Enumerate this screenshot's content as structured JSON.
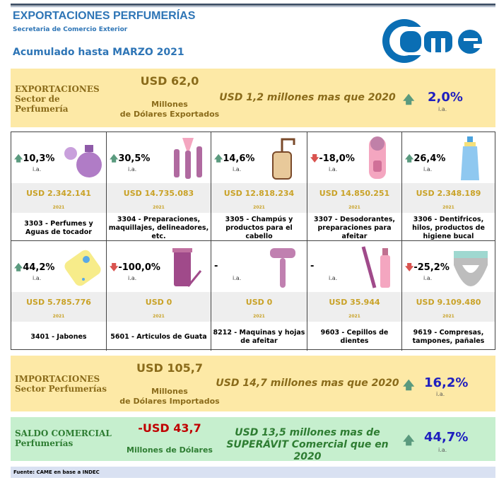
{
  "header": {
    "title": "EXPORTACIONES PERFUMERÍAS",
    "subtitle": "Secretaria de Comercio Exterior",
    "period": "Acumulado  hasta MARZO 2021",
    "logo_text": "came"
  },
  "exports": {
    "label1": "EXPORTACIONES",
    "label2": "Sector de",
    "label3": "Perfumería",
    "value": "USD 62,0",
    "unit1": "Millones",
    "unit2": "de Dólares Exportados",
    "comparison": "USD 1,2 millones mas que 2020",
    "pct": "2,0%",
    "ia": "i.a."
  },
  "products": [
    {
      "pct": "10,3%",
      "dir": "up",
      "ia": "i.a.",
      "usd": "USD 2.342.141",
      "year": "2021",
      "desc": "3303 - Perfumes y Aguas de tocador",
      "icon": "perfume-icon"
    },
    {
      "pct": "30,5%",
      "dir": "up",
      "ia": "i.a.",
      "usd": "USD 14.735.083",
      "year": "2021",
      "desc": "3304 - Preparaciones, maquillajes, delineadores, etc.",
      "icon": "makeup-brushes-icon"
    },
    {
      "pct": "14,6%",
      "dir": "up",
      "ia": "i.a.",
      "usd": "USD 12.818.234",
      "year": "2021",
      "desc": "3305 - Champús y productos para el cabello",
      "icon": "shampoo-bottle-icon"
    },
    {
      "pct": "-18,0%",
      "dir": "down",
      "ia": "i.a.",
      "usd": "USD 14.850.251",
      "year": "2021",
      "desc": "3307 - Desodorantes, preparaciones para afeitar",
      "icon": "deodorant-icon"
    },
    {
      "pct": "26,4%",
      "dir": "up",
      "ia": "i.a.",
      "usd": "USD 2.348.189",
      "year": "2021",
      "desc": "3306 - Dentifricos, hilos, productos de higiene bucal",
      "icon": "toothpaste-tube-icon"
    },
    {
      "pct": "44,2%",
      "dir": "up",
      "ia": "i.a.",
      "usd": "USD 5.785.776",
      "year": "2021",
      "desc": "3401 - Jabones",
      "icon": "soap-icon"
    },
    {
      "pct": "-100,0%",
      "dir": "down",
      "ia": "i.a.",
      "usd": "USD 0",
      "year": "2021",
      "desc": "5601 - Articulos de Guata",
      "icon": "cotton-swabs-icon"
    },
    {
      "pct": "-",
      "dir": "none",
      "ia": "i.a.",
      "usd": "USD 0",
      "year": "2021",
      "desc": "8212 - Maquinas y hojas de afeitar",
      "icon": "razor-icon"
    },
    {
      "pct": "-",
      "dir": "none",
      "ia": "i.a.",
      "usd": "USD 35.944",
      "year": "2021",
      "desc": "9603 - Cepillos de dientes",
      "icon": "toothbrush-icon"
    },
    {
      "pct": "-25,2%",
      "dir": "down",
      "ia": "i.a.",
      "usd": "USD 9.109.480",
      "year": "2021",
      "desc": "9619 - Compresas, tampones, pañales",
      "icon": "diaper-icon"
    }
  ],
  "imports": {
    "label1": "IMPORTACIONES",
    "label2": "Sector Perfumerías",
    "value": "USD 105,7",
    "unit1": "Millones",
    "unit2": "de Dólares Importados",
    "comparison": "USD 14,7 millones mas que 2020",
    "pct": "16,2%",
    "ia": "i.a."
  },
  "balance": {
    "label1": "SALDO COMERCIAL",
    "label2": "Perfumerías",
    "value": "-USD 43,7",
    "unit": "Millones de Dólares",
    "comparison1": "USD 13,5 millones mas de",
    "comparison2": "SUPERÁVIT Comercial que en 2020",
    "pct": "44,7%",
    "ia": "i.a."
  },
  "footer": "Fuente: CAME en base a INDEC"
}
